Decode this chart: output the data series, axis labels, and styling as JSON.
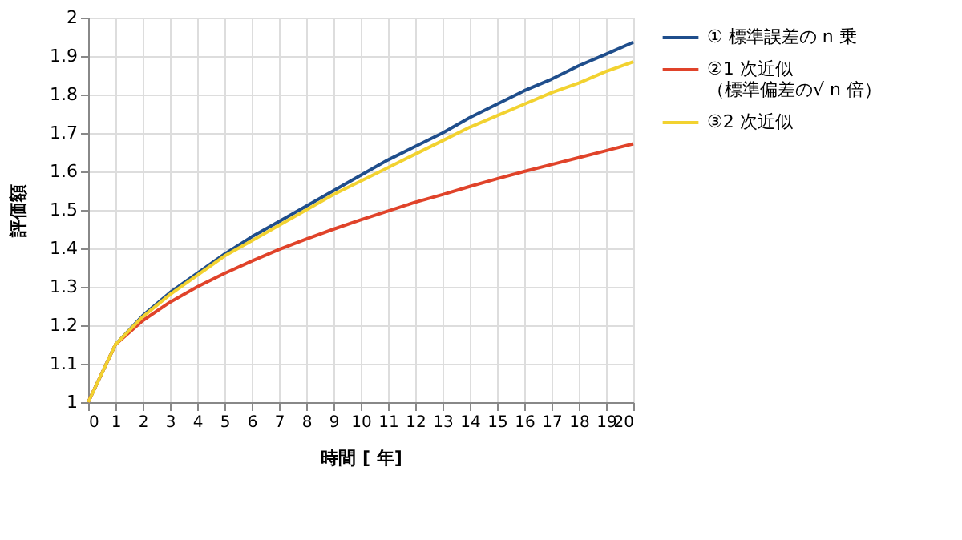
{
  "chart_data": {
    "type": "line",
    "xlabel": "時間 [ 年]",
    "ylabel": "評価額",
    "x": [
      0,
      1,
      2,
      3,
      4,
      5,
      6,
      7,
      8,
      9,
      10,
      11,
      12,
      13,
      14,
      15,
      16,
      17,
      18,
      19,
      20
    ],
    "series": [
      {
        "name": "① 標準誤差の n 乗",
        "color": "#1f4e8c",
        "values": [
          1,
          1.15,
          1.225,
          1.285,
          1.335,
          1.385,
          1.43,
          1.47,
          1.51,
          1.55,
          1.59,
          1.63,
          1.665,
          1.7,
          1.74,
          1.775,
          1.81,
          1.84,
          1.875,
          1.905,
          1.936
        ]
      },
      {
        "name": "②1 次近似（標準偏差の√ n 倍）",
        "color": "#e0432a",
        "values": [
          1,
          1.15,
          1.212,
          1.26,
          1.3,
          1.335,
          1.367,
          1.397,
          1.424,
          1.45,
          1.474,
          1.497,
          1.52,
          1.54,
          1.561,
          1.581,
          1.6,
          1.618,
          1.636,
          1.654,
          1.672
        ]
      },
      {
        "name": "③2 次近似",
        "color": "#f2d230",
        "values": [
          1,
          1.15,
          1.222,
          1.28,
          1.33,
          1.38,
          1.42,
          1.46,
          1.5,
          1.54,
          1.575,
          1.61,
          1.645,
          1.68,
          1.715,
          1.745,
          1.775,
          1.805,
          1.83,
          1.86,
          1.885
        ]
      }
    ],
    "xlim": [
      0,
      20
    ],
    "xticks": [
      0,
      1,
      2,
      3,
      4,
      5,
      6,
      7,
      8,
      9,
      10,
      11,
      12,
      13,
      14,
      15,
      16,
      17,
      18,
      19,
      20
    ],
    "ylim": [
      1,
      2
    ],
    "yticks": [
      1,
      1.1,
      1.2,
      1.3,
      1.4,
      1.5,
      1.6,
      1.7,
      1.8,
      1.9,
      2
    ],
    "grid": true,
    "legend": "right",
    "marker": "none",
    "line_style": "solid"
  }
}
